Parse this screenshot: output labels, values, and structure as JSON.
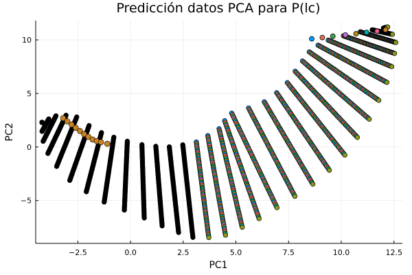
{
  "chart_data": {
    "type": "scatter",
    "title": "Predicción datos PCA para P(lc)",
    "xlabel": "PC1",
    "ylabel": "PC2",
    "xlim": [
      -4.5,
      12.9
    ],
    "ylim": [
      -9.0,
      11.8
    ],
    "grid": true,
    "legend": "none",
    "x_ticks": [
      -2.5,
      0.0,
      2.5,
      5.0,
      7.5,
      10.0,
      12.5
    ],
    "x_tick_labels": [
      "−2.5",
      "0.0",
      "2.5",
      "5.0",
      "7.5",
      "10.0",
      "12.5"
    ],
    "y_ticks": [
      -5,
      0,
      5,
      10
    ],
    "y_tick_labels": [
      "−5",
      "0",
      "5",
      "10"
    ],
    "palette": [
      "#009AFA",
      "#E36F47",
      "#3EA44E",
      "#C271D2",
      "#AC8E18",
      "#00A9AD",
      "#ED5E93",
      "#C68225",
      "#00A98D",
      "#8E971D"
    ],
    "series": [
      {
        "color": "#C68225",
        "points": [
          [
            -3.2,
            2.7
          ],
          [
            -3.0,
            2.4
          ],
          [
            -2.8,
            2.1
          ],
          [
            -2.6,
            1.8
          ],
          [
            -2.4,
            1.5
          ],
          [
            -2.2,
            1.2
          ],
          [
            -2.0,
            0.95
          ],
          [
            -1.8,
            0.7
          ],
          [
            -1.6,
            0.55
          ],
          [
            -1.4,
            0.45
          ],
          [
            -1.1,
            0.3
          ]
        ]
      }
    ]
  }
}
